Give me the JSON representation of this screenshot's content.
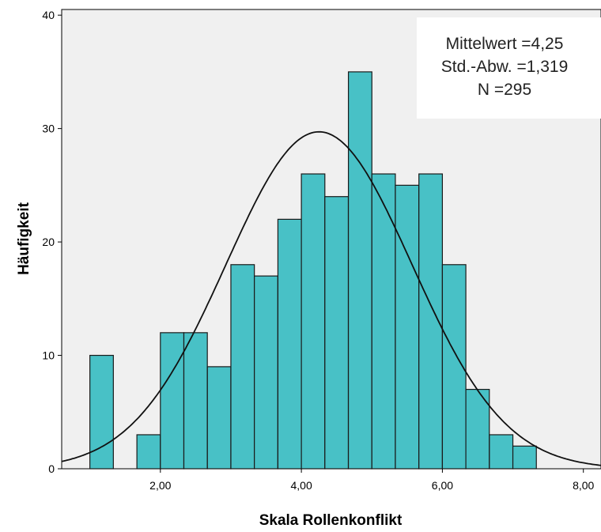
{
  "chart_data": {
    "type": "histogram",
    "xlabel": "Skala Rollenkonflikt",
    "ylabel": "Häufigkeit",
    "xlim": [
      0.6,
      8.25
    ],
    "ylim": [
      0,
      40.5
    ],
    "x_ticks": [
      2,
      4,
      6,
      8
    ],
    "x_tick_labels": [
      "2,00",
      "4,00",
      "6,00",
      "8,00"
    ],
    "y_ticks": [
      0,
      10,
      20,
      30,
      40
    ],
    "y_tick_labels": [
      "0",
      "10",
      "20",
      "30",
      "40"
    ],
    "bin_width": 0.333,
    "bins": [
      {
        "start": 1.0,
        "count": 10
      },
      {
        "start": 1.333,
        "count": 0
      },
      {
        "start": 1.667,
        "count": 3
      },
      {
        "start": 2.0,
        "count": 12
      },
      {
        "start": 2.333,
        "count": 12
      },
      {
        "start": 2.667,
        "count": 9
      },
      {
        "start": 3.0,
        "count": 18
      },
      {
        "start": 3.333,
        "count": 17
      },
      {
        "start": 3.667,
        "count": 22
      },
      {
        "start": 4.0,
        "count": 26
      },
      {
        "start": 4.333,
        "count": 24
      },
      {
        "start": 4.667,
        "count": 35
      },
      {
        "start": 5.0,
        "count": 26
      },
      {
        "start": 5.333,
        "count": 25
      },
      {
        "start": 5.667,
        "count": 26
      },
      {
        "start": 6.0,
        "count": 18
      },
      {
        "start": 6.333,
        "count": 7
      },
      {
        "start": 6.667,
        "count": 3
      },
      {
        "start": 7.0,
        "count": 2
      }
    ],
    "normal_curve": {
      "mean": 4.25,
      "sd": 1.319,
      "n": 295
    },
    "stats_box": [
      "Mittelwert =4,25",
      "Std.-Abw. =1,319",
      "N =295"
    ],
    "stats_box_position": "top-right",
    "colors": {
      "plot_background": "#f0f0f0",
      "bar_fill": "#48c1c6",
      "bar_stroke": "#1a1a1a",
      "curve": "#111111"
    }
  }
}
